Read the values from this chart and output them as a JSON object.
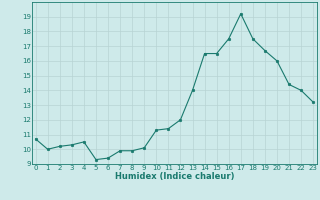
{
  "x": [
    0,
    1,
    2,
    3,
    4,
    5,
    6,
    7,
    8,
    9,
    10,
    11,
    12,
    13,
    14,
    15,
    16,
    17,
    18,
    19,
    20,
    21,
    22,
    23
  ],
  "y": [
    10.7,
    10.0,
    10.2,
    10.3,
    10.5,
    9.3,
    9.4,
    9.9,
    9.9,
    10.1,
    11.3,
    11.4,
    12.0,
    14.0,
    16.5,
    16.5,
    17.5,
    19.2,
    17.5,
    16.7,
    16.0,
    14.4,
    14.0,
    13.2
  ],
  "xlabel": "Humidex (Indice chaleur)",
  "ylim": [
    9,
    20
  ],
  "yticks": [
    9,
    10,
    11,
    12,
    13,
    14,
    15,
    16,
    17,
    18,
    19
  ],
  "xticks": [
    0,
    1,
    2,
    3,
    4,
    5,
    6,
    7,
    8,
    9,
    10,
    11,
    12,
    13,
    14,
    15,
    16,
    17,
    18,
    19,
    20,
    21,
    22,
    23
  ],
  "line_color": "#1a7a6e",
  "marker_color": "#1a7a6e",
  "bg_color": "#ceeaea",
  "grid_color": "#b8d4d4",
  "xlabel_color": "#1a7a6e",
  "tick_color": "#1a7a6e",
  "tick_fontsize": 5.0,
  "xlabel_fontsize": 6.0,
  "linewidth": 0.8,
  "markersize": 1.8
}
